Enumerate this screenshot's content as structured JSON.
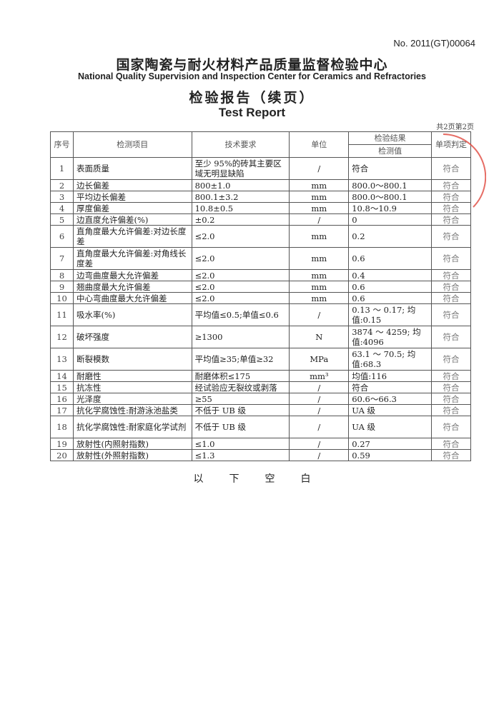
{
  "report_no": "No. 2011(GT)00064",
  "center_cn": "国家陶瓷与耐火材料产品质量监督检验中心",
  "center_en": "National Quality Supervision and Inspection Center for Ceramics and Refractories",
  "title_cn": "检验报告（续页）",
  "title_en": "Test Report",
  "page_count": "共2页第2页",
  "headers": {
    "no": "序号",
    "item": "检测项目",
    "req": "技术要求",
    "unit": "单位",
    "result": "检验结果",
    "measured": "检测值",
    "verdict": "单项判定"
  },
  "rows": [
    {
      "no": "1",
      "item": "表面质量",
      "req": "至少 95%的砖其主要区域无明显缺陷",
      "unit": "/",
      "value": "符合",
      "verdict": "符合"
    },
    {
      "no": "2",
      "item": "边长偏差",
      "req": "800±1.0",
      "unit": "mm",
      "value": "800.0～800.1",
      "verdict": "符合"
    },
    {
      "no": "3",
      "item": "平均边长偏差",
      "req": "800.1±3.2",
      "unit": "mm",
      "value": "800.0～800.1",
      "verdict": "符合"
    },
    {
      "no": "4",
      "item": "厚度偏差",
      "req": "10.8±0.5",
      "unit": "mm",
      "value": "10.8～10.9",
      "verdict": "符合"
    },
    {
      "no": "5",
      "item": "边直度允许偏差(%)",
      "req": "±0.2",
      "unit": "/",
      "value": "0",
      "verdict": "符合"
    },
    {
      "no": "6",
      "item": "直角度最大允许偏差:对边长度差",
      "req": "≤2.0",
      "unit": "mm",
      "value": "0.2",
      "verdict": "符合"
    },
    {
      "no": "7",
      "item": "直角度最大允许偏差:对角线长度差",
      "req": "≤2.0",
      "unit": "mm",
      "value": "0.6",
      "verdict": "符合"
    },
    {
      "no": "8",
      "item": "边弯曲度最大允许偏差",
      "req": "≤2.0",
      "unit": "mm",
      "value": "0.4",
      "verdict": "符合"
    },
    {
      "no": "9",
      "item": "翘曲度最大允许偏差",
      "req": "≤2.0",
      "unit": "mm",
      "value": "0.6",
      "verdict": "符合"
    },
    {
      "no": "10",
      "item": "中心弯曲度最大允许偏差",
      "req": "≤2.0",
      "unit": "mm",
      "value": "0.6",
      "verdict": "符合"
    },
    {
      "no": "11",
      "item": "吸水率(%)",
      "req": "平均值≤0.5;单值≤0.6",
      "unit": "/",
      "value": "0.13 ～ 0.17; 均值:0.15",
      "verdict": "符合"
    },
    {
      "no": "12",
      "item": "破坏强度",
      "req": "≥1300",
      "unit": "N",
      "value": "3874 ～ 4259; 均值:4096",
      "verdict": "符合"
    },
    {
      "no": "13",
      "item": "断裂模数",
      "req": "平均值≥35;单值≥32",
      "unit": "MPa",
      "value": "63.1 ～ 70.5; 均值:68.3",
      "verdict": "符合"
    },
    {
      "no": "14",
      "item": "耐磨性",
      "req": "耐磨体积≤175",
      "unit": "mm³",
      "value": "均值:116",
      "verdict": "符合"
    },
    {
      "no": "15",
      "item": "抗冻性",
      "req": "经试验应无裂纹或剥落",
      "unit": "/",
      "value": "符合",
      "verdict": "符合"
    },
    {
      "no": "16",
      "item": "光泽度",
      "req": "≥55",
      "unit": "/",
      "value": "60.6～66.3",
      "verdict": "符合"
    },
    {
      "no": "17",
      "item": "抗化学腐蚀性:耐游泳池盐类",
      "req": "不低于 UB 级",
      "unit": "/",
      "value": "UA 级",
      "verdict": "符合"
    },
    {
      "no": "18",
      "item": "抗化学腐蚀性:耐家庭化学试剂",
      "req": "不低于 UB 级",
      "unit": "/",
      "value": "UA 级",
      "verdict": "符合"
    },
    {
      "no": "19",
      "item": "放射性(内照射指数)",
      "req": "≤1.0",
      "unit": "/",
      "value": "0.27",
      "verdict": "符合"
    },
    {
      "no": "20",
      "item": "放射性(外照射指数)",
      "req": "≤1.3",
      "unit": "/",
      "value": "0.59",
      "verdict": "符合"
    }
  ],
  "footer": [
    "以",
    "下",
    "空",
    "白"
  ],
  "stamp_color": "#e0483f"
}
